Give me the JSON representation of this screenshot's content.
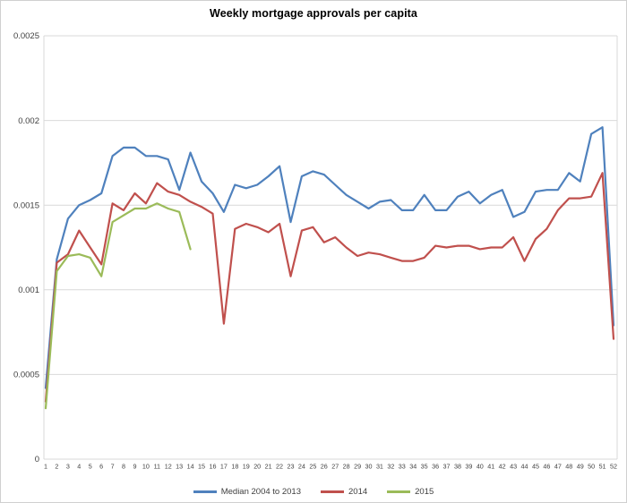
{
  "title": "Weekly mortgage approvals per capita",
  "colors": {
    "median_line": "#4F81BD",
    "line_2014": "#C0504D",
    "line_2015": "#9BBB59",
    "gridline": "#D9D9D9",
    "axis_text": "#3F3F3F",
    "frame_border": "#D0D0D0"
  },
  "chart_data": {
    "type": "line",
    "title": "Weekly mortgage approvals per capita",
    "xlabel": "",
    "ylabel": "",
    "x": [
      1,
      2,
      3,
      4,
      5,
      6,
      7,
      8,
      9,
      10,
      11,
      12,
      13,
      14,
      15,
      16,
      17,
      18,
      19,
      20,
      21,
      22,
      23,
      24,
      25,
      26,
      27,
      28,
      29,
      30,
      31,
      32,
      33,
      34,
      35,
      36,
      37,
      38,
      39,
      40,
      41,
      42,
      43,
      44,
      45,
      46,
      47,
      48,
      49,
      50,
      51,
      52
    ],
    "xtick_labels": [
      "1",
      "2",
      "3",
      "4",
      "5",
      "6",
      "7",
      "8",
      "9",
      "10",
      "11",
      "12",
      "13",
      "14",
      "15",
      "16",
      "17",
      "18",
      "19",
      "20",
      "21",
      "22",
      "23",
      "24",
      "25",
      "26",
      "27",
      "28",
      "29",
      "30",
      "31",
      "32",
      "33",
      "34",
      "35",
      "36",
      "37",
      "38",
      "39",
      "40",
      "41",
      "42",
      "43",
      "44",
      "45",
      "46",
      "47",
      "48",
      "49",
      "50",
      "51",
      "52"
    ],
    "ylim": [
      0,
      0.0025
    ],
    "yticks": [
      0,
      0.0005,
      0.001,
      0.0015,
      0.002,
      0.0025
    ],
    "ytick_labels": [
      "0",
      "0.0005",
      "0.001",
      "0.0015",
      "0.002",
      "0.0025"
    ],
    "grid": "horizontal-only",
    "legend_position": "bottom-center",
    "series": [
      {
        "name": "Median 2004 to 2013",
        "color": "#4F81BD",
        "values": [
          0.00042,
          0.00118,
          0.00142,
          0.0015,
          0.00153,
          0.00157,
          0.00179,
          0.00184,
          0.00184,
          0.00179,
          0.00179,
          0.00177,
          0.00159,
          0.00181,
          0.00164,
          0.00157,
          0.00146,
          0.00162,
          0.0016,
          0.00162,
          0.00167,
          0.00173,
          0.0014,
          0.00167,
          0.0017,
          0.00168,
          0.00162,
          0.00156,
          0.00152,
          0.00148,
          0.00152,
          0.00153,
          0.00147,
          0.00147,
          0.00156,
          0.00147,
          0.00147,
          0.00155,
          0.00158,
          0.00151,
          0.00156,
          0.00159,
          0.00143,
          0.00146,
          0.00158,
          0.00159,
          0.00159,
          0.00169,
          0.00164,
          0.00192,
          0.00196,
          0.00079
        ]
      },
      {
        "name": "2014",
        "color": "#C0504D",
        "values": [
          0.00034,
          0.00116,
          0.00121,
          0.00135,
          0.00125,
          0.00115,
          0.00151,
          0.00147,
          0.00157,
          0.00151,
          0.00163,
          0.00158,
          0.00156,
          0.00152,
          0.00149,
          0.00145,
          0.0008,
          0.00136,
          0.00139,
          0.00137,
          0.00134,
          0.00139,
          0.00108,
          0.00135,
          0.00137,
          0.00128,
          0.00131,
          0.00125,
          0.0012,
          0.00122,
          0.00121,
          0.00119,
          0.00117,
          0.00117,
          0.00119,
          0.00126,
          0.00125,
          0.00126,
          0.00126,
          0.00124,
          0.00125,
          0.00125,
          0.00131,
          0.00117,
          0.0013,
          0.00136,
          0.00147,
          0.00154,
          0.00154,
          0.00155,
          0.00169,
          0.00071
        ]
      },
      {
        "name": "2015",
        "color": "#9BBB59",
        "values": [
          0.0003,
          0.00111,
          0.0012,
          0.00121,
          0.00119,
          0.00108,
          0.0014,
          0.00144,
          0.00148,
          0.00148,
          0.00151,
          0.00148,
          0.00146,
          0.00124,
          null,
          null,
          null,
          null,
          null,
          null,
          null,
          null,
          null,
          null,
          null,
          null,
          null,
          null,
          null,
          null,
          null,
          null,
          null,
          null,
          null,
          null,
          null,
          null,
          null,
          null,
          null,
          null,
          null,
          null,
          null,
          null,
          null,
          null,
          null,
          null,
          null,
          null
        ]
      }
    ]
  }
}
